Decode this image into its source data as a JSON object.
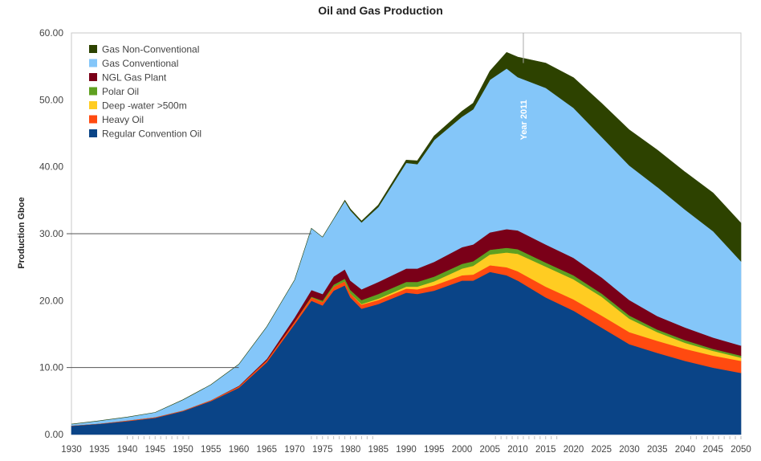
{
  "chart_data": {
    "type": "area",
    "stacked": true,
    "title": "Oil and Gas Production",
    "xlabel": "",
    "ylabel": "Production Gboe",
    "xlim": [
      1930,
      2050
    ],
    "ylim": [
      0,
      60
    ],
    "yticks": [
      "0.00",
      "10.00",
      "20.00",
      "30.00",
      "40.00",
      "50.00",
      "60.00"
    ],
    "ytick_values": [
      0,
      10,
      20,
      30,
      40,
      50,
      60
    ],
    "xticks": [
      "1930",
      "1935",
      "1940",
      "1945",
      "1950",
      "1955",
      "1960",
      "1965",
      "1970",
      "1975",
      "1980",
      "1985",
      "1990",
      "1995",
      "2000",
      "2005",
      "2010",
      "2015",
      "2020",
      "2025",
      "2030",
      "2035",
      "2040",
      "2045",
      "2050"
    ],
    "xtick_values": [
      1930,
      1935,
      1940,
      1945,
      1950,
      1955,
      1960,
      1965,
      1970,
      1975,
      1980,
      1985,
      1990,
      1995,
      2000,
      2005,
      2010,
      2015,
      2020,
      2025,
      2030,
      2035,
      2040,
      2045,
      2050
    ],
    "reference_lines": [
      {
        "axis": "y",
        "value": 10,
        "x_end": 1960
      },
      {
        "axis": "y",
        "value": 30,
        "x_end": 1973
      },
      {
        "axis": "x",
        "value": 2011,
        "label": "Year 2011"
      }
    ],
    "legend_position": "top-left",
    "x": [
      1930,
      1935,
      1940,
      1945,
      1950,
      1955,
      1960,
      1965,
      1970,
      1973,
      1975,
      1977,
      1979,
      1980,
      1982,
      1985,
      1990,
      1992,
      1995,
      2000,
      2002,
      2005,
      2008,
      2010,
      2015,
      2020,
      2025,
      2030,
      2035,
      2040,
      2045,
      2050
    ],
    "series": [
      {
        "name": "Regular Convention Oil",
        "color": "#0a4487",
        "values": [
          1.3,
          1.6,
          2.0,
          2.5,
          3.5,
          5.0,
          7.0,
          10.8,
          16.5,
          20.0,
          19.3,
          21.5,
          22.3,
          20.5,
          18.8,
          19.5,
          21.2,
          21.0,
          21.5,
          23.0,
          23.0,
          24.3,
          23.8,
          23.0,
          20.5,
          18.5,
          16.0,
          13.5,
          12.2,
          11.0,
          10.0,
          9.2
        ]
      },
      {
        "name": "Heavy Oil",
        "color": "#ff4a10",
        "values": [
          0.05,
          0.05,
          0.1,
          0.1,
          0.1,
          0.15,
          0.2,
          0.3,
          0.4,
          0.5,
          0.5,
          0.6,
          0.6,
          0.6,
          0.6,
          0.6,
          0.6,
          0.7,
          0.8,
          0.8,
          0.9,
          1.0,
          1.2,
          1.4,
          1.6,
          1.7,
          1.8,
          1.8,
          1.8,
          1.8,
          1.8,
          1.8
        ]
      },
      {
        "name": "Deep -water >500m",
        "color": "#ffcc22",
        "values": [
          0,
          0,
          0,
          0,
          0,
          0,
          0,
          0,
          0,
          0,
          0,
          0,
          0,
          0,
          0.1,
          0.2,
          0.3,
          0.4,
          0.6,
          1.0,
          1.3,
          1.6,
          2.2,
          2.6,
          3.0,
          3.0,
          2.8,
          2.0,
          1.3,
          0.9,
          0.7,
          0.5
        ]
      },
      {
        "name": "Polar Oil",
        "color": "#5fa020",
        "values": [
          0,
          0,
          0,
          0,
          0,
          0,
          0,
          0,
          0,
          0.1,
          0.2,
          0.3,
          0.4,
          0.5,
          0.6,
          0.7,
          0.7,
          0.7,
          0.7,
          0.7,
          0.7,
          0.7,
          0.7,
          0.7,
          0.6,
          0.6,
          0.5,
          0.5,
          0.4,
          0.4,
          0.3,
          0.3
        ]
      },
      {
        "name": "NGL Gas Plant",
        "color": "#7a0018",
        "values": [
          0,
          0,
          0,
          0,
          0,
          0,
          0.1,
          0.2,
          0.6,
          1.0,
          1.0,
          1.2,
          1.4,
          1.4,
          1.6,
          1.8,
          2.0,
          2.0,
          2.2,
          2.5,
          2.5,
          2.6,
          2.8,
          2.8,
          2.7,
          2.6,
          2.4,
          2.3,
          2.0,
          1.9,
          1.7,
          1.5
        ]
      },
      {
        "name": "Gas Conventional",
        "color": "#84c6f9",
        "values": [
          0.2,
          0.4,
          0.5,
          0.7,
          1.6,
          2.3,
          3.2,
          4.8,
          5.6,
          9.2,
          8.5,
          8.6,
          10.2,
          10.5,
          10.0,
          11.2,
          15.8,
          15.6,
          18.2,
          19.5,
          20.2,
          22.8,
          24.0,
          22.9,
          23.4,
          22.4,
          21.0,
          20.1,
          19.3,
          17.6,
          15.9,
          12.6
        ]
      },
      {
        "name": "Gas Non-Conventional",
        "color": "#2d4200",
        "values": [
          0,
          0,
          0,
          0,
          0,
          0,
          0,
          0,
          0,
          0,
          0,
          0,
          0.1,
          0.2,
          0.2,
          0.3,
          0.4,
          0.5,
          0.6,
          0.8,
          0.9,
          1.3,
          2.4,
          3.0,
          3.7,
          4.5,
          5.0,
          5.3,
          5.5,
          5.6,
          5.7,
          5.7
        ]
      }
    ]
  }
}
